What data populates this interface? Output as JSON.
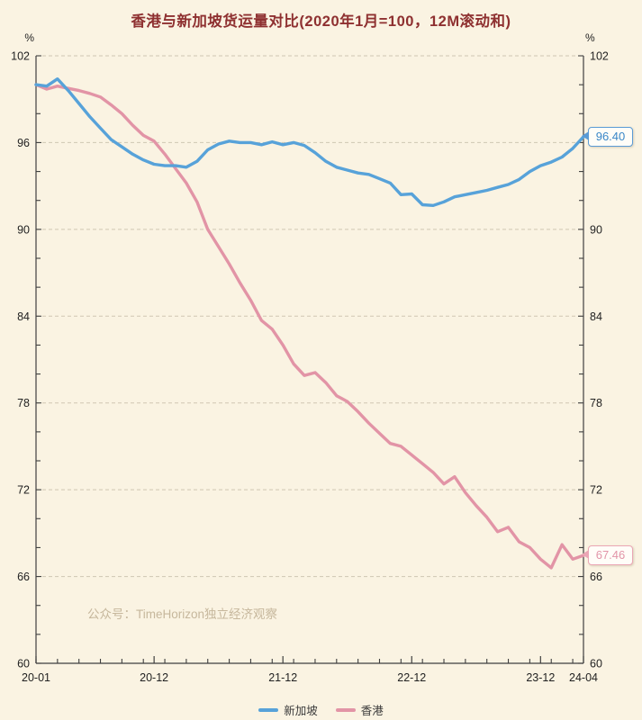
{
  "title": "香港与新加坡货运量对比(2020年1月=100，12M滚动和)",
  "watermark": "公众号：TimeHorizon独立经济观察",
  "axis": {
    "left_unit": "%",
    "right_unit": "%"
  },
  "legend": {
    "items": [
      {
        "label": "新加坡",
        "color": "#57a2d9"
      },
      {
        "label": "香港",
        "color": "#e294a6"
      }
    ]
  },
  "callouts": {
    "singapore_end": "96.40",
    "hongkong_end": "67.46"
  },
  "chart_data": {
    "type": "line",
    "title": "香港与新加坡货运量对比(2020年1月=100，12M滚动和)",
    "ylabel": "%",
    "ylim": [
      60,
      102
    ],
    "y_major_ticks": [
      102,
      96,
      90,
      84,
      78,
      72,
      66,
      60
    ],
    "y_minor_step": 2,
    "grid": "horizontal-dashed",
    "legend_position": "bottom-center",
    "x_start_month": "2020-01",
    "x_end_month": "2024-04",
    "x_tick_labels": [
      "20-01",
      "20-12",
      "21-12",
      "22-12",
      "23-12",
      "24-04"
    ],
    "x_tick_month_index": [
      0,
      11,
      23,
      35,
      47,
      51
    ],
    "series": [
      {
        "name": "香港",
        "color": "#e294a6",
        "end_label": "67.46",
        "values": [
          100.0,
          99.7,
          99.9,
          99.75,
          99.6,
          99.4,
          99.15,
          98.6,
          98.0,
          97.2,
          96.5,
          96.1,
          95.2,
          94.2,
          93.2,
          91.9,
          90.0,
          88.8,
          87.6,
          86.3,
          85.1,
          83.7,
          83.1,
          82.0,
          80.7,
          79.9,
          80.1,
          79.4,
          78.5,
          78.1,
          77.4,
          76.6,
          75.9,
          75.2,
          75.0,
          74.4,
          73.8,
          73.2,
          72.4,
          72.9,
          71.8,
          70.9,
          70.1,
          69.1,
          69.4,
          68.4,
          68.0,
          67.2,
          66.6,
          68.2,
          67.2,
          67.46
        ]
      },
      {
        "name": "新加坡",
        "color": "#57a2d9",
        "end_label": "96.40",
        "values": [
          100.0,
          99.9,
          100.4,
          99.6,
          98.7,
          97.8,
          97.0,
          96.2,
          95.7,
          95.2,
          94.8,
          94.5,
          94.4,
          94.4,
          94.3,
          94.7,
          95.5,
          95.9,
          96.1,
          96.0,
          96.0,
          95.85,
          96.05,
          95.85,
          96.0,
          95.8,
          95.3,
          94.7,
          94.3,
          94.1,
          93.9,
          93.8,
          93.5,
          93.2,
          92.4,
          92.45,
          91.7,
          91.65,
          91.9,
          92.25,
          92.4,
          92.55,
          92.7,
          92.9,
          93.1,
          93.45,
          94.0,
          94.4,
          94.65,
          95.0,
          95.6,
          96.4
        ]
      }
    ]
  },
  "colors": {
    "background": "#faf3e2",
    "title": "#8e3030",
    "axis": "#3f3f3f",
    "gridline": "#cfc6b2",
    "singapore": "#57a2d9",
    "hongkong": "#e294a6",
    "watermark": "#c6b79c"
  }
}
